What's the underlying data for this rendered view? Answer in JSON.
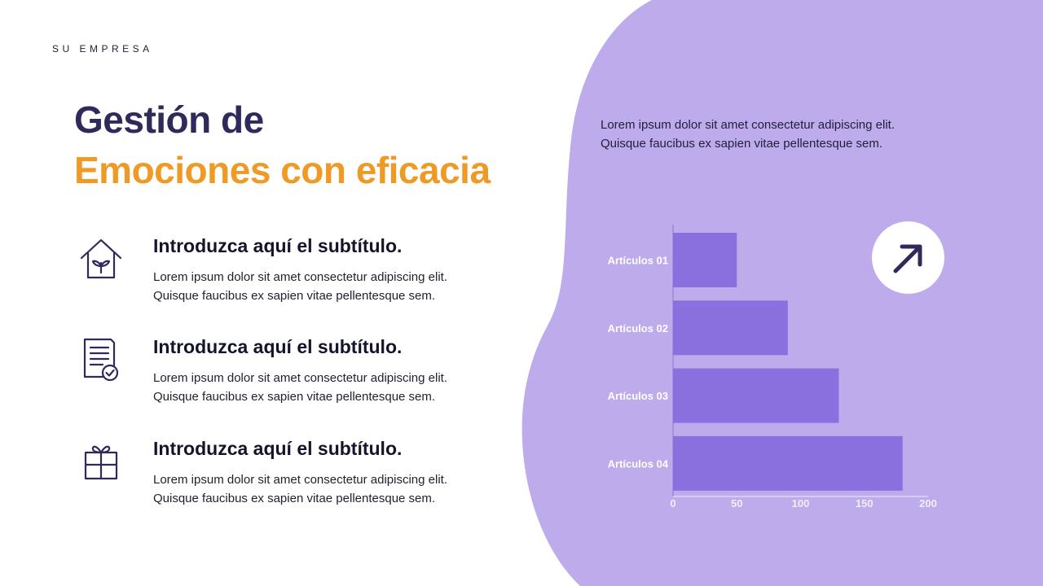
{
  "company": "SU EMPRESA",
  "title": {
    "line1": "Gestión de",
    "line2": "Emociones con eficacia"
  },
  "features": [
    {
      "icon": "house-plant-icon",
      "subtitle": "Introduzca aquí el subtítulo.",
      "line1": "Lorem ipsum dolor sit amet consectetur adipiscing elit.",
      "line2": "Quisque faucibus ex sapien vitae pellentesque sem."
    },
    {
      "icon": "document-check-icon",
      "subtitle": "Introduzca aquí el subtítulo.",
      "line1": "Lorem ipsum dolor sit amet consectetur adipiscing elit.",
      "line2": "Quisque faucibus ex sapien vitae pellentesque sem."
    },
    {
      "icon": "gift-icon",
      "subtitle": "Introduzca aquí el subtítulo.",
      "line1": "Lorem ipsum dolor sit amet consectetur adipiscing elit.",
      "line2": "Quisque faucibus ex sapien vitae pellentesque sem."
    }
  ],
  "side_text": {
    "line1": "Lorem ipsum dolor sit amet consectetur adipiscing elit.",
    "line2": "Quisque faucibus ex sapien vitae pellentesque sem."
  },
  "badge_icon": "arrow-up-right-icon",
  "colors": {
    "title_dark": "#2e2a5c",
    "title_accent": "#ef9a24",
    "panel": "#bdabec",
    "bar": "#8a70de",
    "icon": "#2e2a5c"
  },
  "chart_data": {
    "type": "bar",
    "orientation": "horizontal",
    "categories": [
      "Artículos 01",
      "Artículos 02",
      "Artículos 03",
      "Artículos 04"
    ],
    "values": [
      50,
      90,
      130,
      180
    ],
    "xlim": [
      0,
      200
    ],
    "xticks": [
      0,
      50,
      100,
      150,
      200
    ],
    "grid": false,
    "title": "",
    "xlabel": "",
    "ylabel": ""
  }
}
